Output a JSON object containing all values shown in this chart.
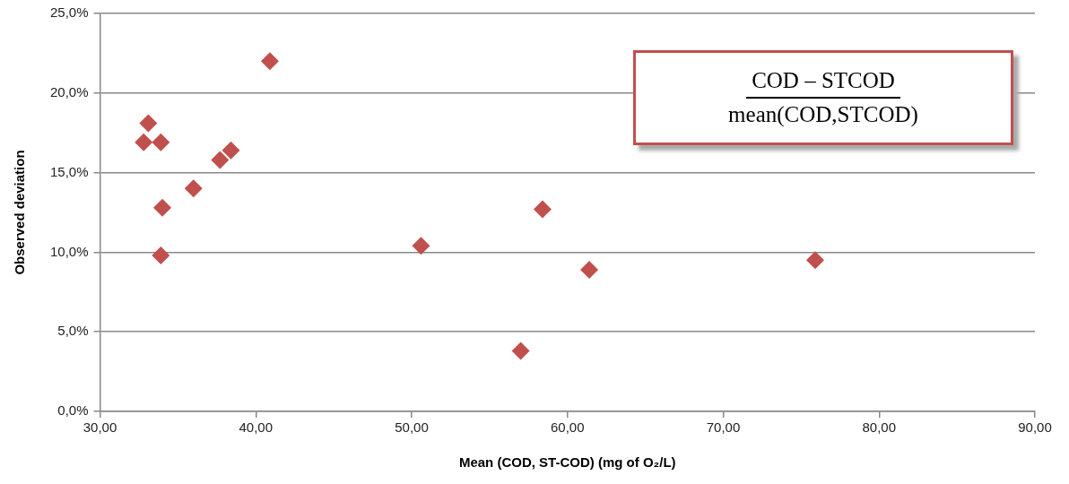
{
  "chart_data": {
    "type": "scatter",
    "xlabel": "Mean (COD, ST-COD) (mg of O₂/L)",
    "ylabel": "Observed deviation",
    "annotations": [
      "COD – STCOD",
      "mean(COD,STCOD)"
    ],
    "x": [
      40.9,
      33.1,
      32.8,
      33.9,
      34.0,
      33.9,
      36.0,
      37.7,
      38.4,
      50.6,
      58.4,
      57.0,
      61.4,
      75.9
    ],
    "series": [
      {
        "color": "#c0504d",
        "values": [
          22.0,
          18.1,
          16.9,
          16.9,
          12.8,
          9.8,
          14.0,
          15.8,
          16.4,
          10.4,
          12.7,
          3.8,
          8.9,
          9.5
        ]
      }
    ],
    "xlim": [
      30,
      90
    ],
    "xticks": [
      {
        "value": 30,
        "label": "30,00"
      },
      {
        "value": 40,
        "label": "40,00"
      },
      {
        "value": 50,
        "label": "50,00"
      },
      {
        "value": 60,
        "label": "60,00"
      },
      {
        "value": 70,
        "label": "70,00"
      },
      {
        "value": 80,
        "label": "80,00"
      },
      {
        "value": 90,
        "label": "90,00"
      }
    ],
    "ylim": [
      0,
      25
    ],
    "yticks": [
      {
        "value": 0,
        "label": "0,0%"
      },
      {
        "value": 5,
        "label": "5,0%"
      },
      {
        "value": 10,
        "label": "10,0%"
      },
      {
        "value": 15,
        "label": "15,0%"
      },
      {
        "value": 20,
        "label": "20,0%"
      },
      {
        "value": 25,
        "label": "25,0%"
      }
    ],
    "grid": "y",
    "marker": "diamond",
    "legend": false
  }
}
